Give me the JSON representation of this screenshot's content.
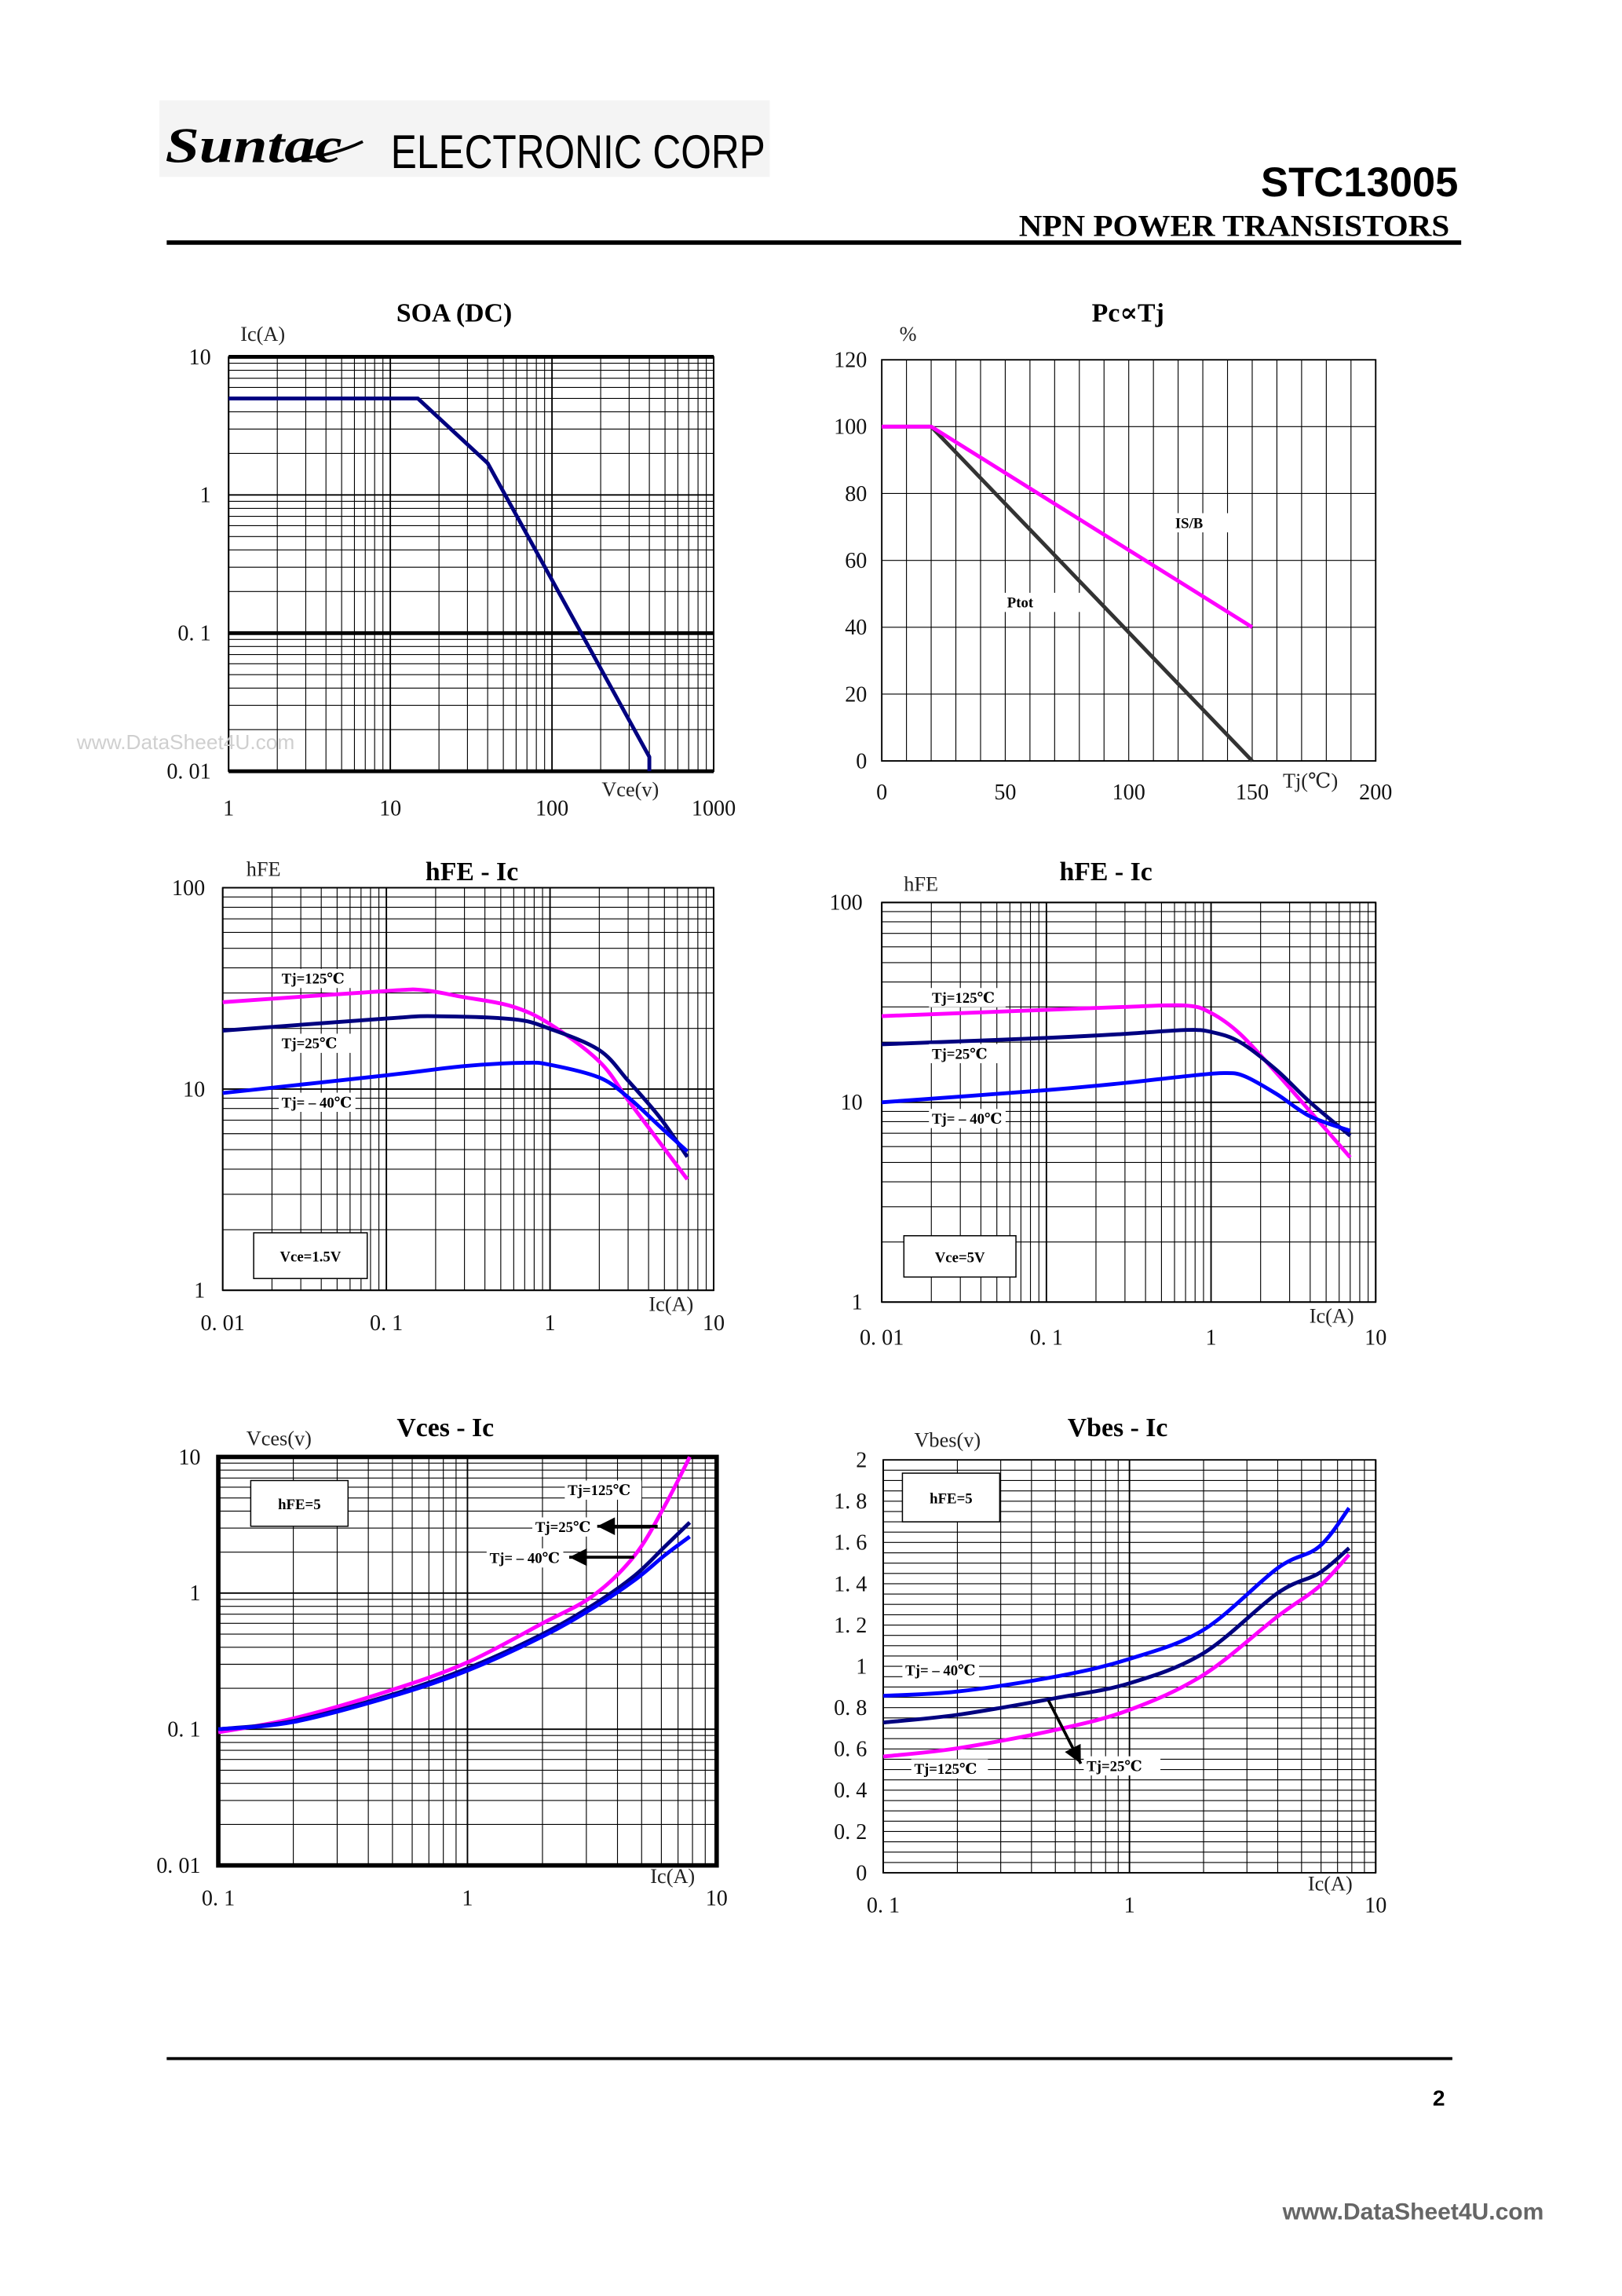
{
  "header": {
    "logo_text": "Suntac",
    "company": "ELECTRONIC CORP",
    "part_number": "STC13005",
    "subtitle": "NPN POWER TRANSISTORS"
  },
  "watermark_faint": "www.DataSheet4U.com",
  "footer": {
    "page_number": "2",
    "watermark": "www.DataSheet4U.com"
  },
  "colors": {
    "tj_125": "#ff00ff",
    "tj_25": "#000080",
    "tj_minus40": "#0000ff",
    "soa": "#000080",
    "ptot": "#333333",
    "isb": "#ff00ff"
  },
  "chart_data": [
    {
      "type": "line",
      "title": "SOA (DC)",
      "xlabel": "Vce(v)",
      "ylabel": "Ic(A)",
      "x_scale": "log",
      "y_scale": "log",
      "xlim": [
        1,
        1000
      ],
      "ylim": [
        0.01,
        10
      ],
      "x_ticks": [
        1,
        10,
        100,
        1000
      ],
      "x_tick_labels": [
        "1",
        "10",
        "100",
        "1000"
      ],
      "y_ticks": [
        10,
        1,
        0.1,
        0.01
      ],
      "y_tick_labels": [
        "10",
        "1",
        "0. 1",
        "0. 01"
      ],
      "grid": true,
      "interpolation": "linear",
      "series": [
        {
          "color": "#000080",
          "x": [
            1,
            14.8,
            40,
            400,
            400
          ],
          "y": [
            5,
            5,
            1.7,
            0.0127,
            0.01
          ]
        }
      ],
      "annotations": []
    },
    {
      "type": "line",
      "title": "Pc∝Tj",
      "xlabel": "Tj(℃)",
      "ylabel": "%",
      "x_scale": "linear",
      "y_scale": "linear",
      "xlim": [
        0,
        200
      ],
      "ylim": [
        0,
        120
      ],
      "x_ticks": [
        0,
        50,
        100,
        150,
        200
      ],
      "x_tick_labels": [
        "0",
        "50",
        "100",
        "150",
        "200"
      ],
      "y_ticks": [
        120,
        100,
        80,
        60,
        40,
        20,
        0
      ],
      "y_tick_labels": [
        "120",
        "100",
        "80",
        "60",
        "40",
        "20",
        "0"
      ],
      "grid": true,
      "interpolation": "linear",
      "series": [
        {
          "name": "Ptot",
          "color": "#333333",
          "x": [
            0,
            20,
            150
          ],
          "y": [
            100,
            100,
            0
          ]
        },
        {
          "name": "IS/B",
          "color": "#ff00ff",
          "x": [
            0,
            20,
            150
          ],
          "y": [
            100,
            100,
            40
          ]
        }
      ],
      "annotations": []
    },
    {
      "type": "line",
      "title": "hFE - Ic",
      "xlabel": "Ic(A)",
      "ylabel": "hFE",
      "x_scale": "log",
      "y_scale": "log",
      "xlim": [
        0.01,
        10
      ],
      "ylim": [
        1,
        100
      ],
      "x_ticks": [
        0.01,
        0.1,
        1,
        10
      ],
      "x_tick_labels": [
        "0. 01",
        "0. 1",
        "1",
        "10"
      ],
      "y_ticks": [
        100,
        10,
        1
      ],
      "y_tick_labels": [
        "100",
        "10",
        "1"
      ],
      "grid": true,
      "interpolation": "smooth",
      "series": [
        {
          "name": "Tj=125℃",
          "color": "#ff00ff",
          "x": [
            0.01,
            0.1,
            0.167,
            0.29,
            0.58,
            1,
            2,
            3,
            4.7,
            6.9
          ],
          "y": [
            27,
            30.7,
            31,
            28.7,
            25.8,
            21,
            13.7,
            8.8,
            5.4,
            3.56
          ]
        },
        {
          "name": "Tj=25℃",
          "color": "#000080",
          "x": [
            0.01,
            0.1,
            0.2,
            0.6,
            1,
            2,
            3,
            4.7,
            6.9
          ],
          "y": [
            19.5,
            22.4,
            23,
            22.2,
            19.9,
            15.6,
            11,
            7.2,
            4.6
          ]
        },
        {
          "name": "Tj= – 40℃",
          "color": "#0000ff",
          "x": [
            0.01,
            0.1,
            0.3,
            0.7,
            1,
            2,
            3,
            4.7,
            6.9
          ],
          "y": [
            9.55,
            11.7,
            13,
            13.5,
            13.2,
            11.4,
            9.1,
            6.5,
            4.9
          ]
        }
      ],
      "annotations": [
        "Vce=1.5V"
      ]
    },
    {
      "type": "line",
      "title": "hFE - Ic",
      "xlabel": "Ic(A)",
      "ylabel": "hFE",
      "x_scale": "log",
      "y_scale": "log",
      "xlim": [
        0.01,
        10
      ],
      "ylim": [
        1,
        100
      ],
      "x_ticks": [
        0.01,
        0.1,
        1,
        10
      ],
      "x_tick_labels": [
        "0. 01",
        "0. 1",
        "1",
        "10"
      ],
      "y_ticks": [
        100,
        10,
        1
      ],
      "y_tick_labels": [
        "100",
        "10",
        "1"
      ],
      "grid": true,
      "interpolation": "smooth",
      "series": [
        {
          "name": "Tj=125℃",
          "color": "#ff00ff",
          "x": [
            0.01,
            0.1,
            0.3,
            0.7,
            1,
            1.5,
            2.5,
            4,
            7
          ],
          "y": [
            27,
            29,
            30,
            30.5,
            28,
            22,
            14,
            9,
            5.3
          ]
        },
        {
          "name": "Tj=25℃",
          "color": "#000080",
          "x": [
            0.01,
            0.1,
            0.3,
            0.7,
            1,
            1.5,
            2.5,
            4,
            7
          ],
          "y": [
            19.5,
            21,
            22,
            23,
            22.5,
            20,
            14.5,
            10,
            6.8
          ]
        },
        {
          "name": "Tj= – 40℃",
          "color": "#0000ff",
          "x": [
            0.01,
            0.1,
            0.3,
            0.7,
            1.2,
            1.6,
            2.5,
            4,
            7
          ],
          "y": [
            10,
            11.5,
            12.5,
            13.5,
            14,
            13.5,
            11,
            8.5,
            7.2
          ]
        }
      ],
      "annotations": [
        "Vce=5V"
      ]
    },
    {
      "type": "line",
      "title": "Vces - Ic",
      "xlabel": "Ic(A)",
      "ylabel": "Vces(v)",
      "x_scale": "log",
      "y_scale": "log",
      "xlim": [
        0.1,
        10
      ],
      "ylim": [
        0.01,
        10
      ],
      "x_ticks": [
        0.1,
        1,
        10
      ],
      "x_tick_labels": [
        "0. 1",
        "1",
        "10"
      ],
      "y_ticks": [
        10,
        1,
        0.1,
        0.01
      ],
      "y_tick_labels": [
        "10",
        "1",
        "0. 1",
        "0. 01"
      ],
      "grid": true,
      "interpolation": "smooth",
      "series": [
        {
          "name": "Tj=125℃",
          "color": "#ff00ff",
          "x": [
            0.1,
            0.2,
            0.5,
            1,
            2,
            3.2,
            4.7,
            6.2,
            7.8
          ],
          "y": [
            0.095,
            0.12,
            0.195,
            0.31,
            0.6,
            0.96,
            1.9,
            4.4,
            10
          ]
        },
        {
          "name": "Tj=25℃",
          "color": "#000080",
          "x": [
            0.1,
            0.2,
            0.5,
            1,
            2,
            3.2,
            4.7,
            6.2,
            7.8
          ],
          "y": [
            0.1,
            0.115,
            0.18,
            0.28,
            0.5,
            0.82,
            1.35,
            2.2,
            3.3
          ]
        },
        {
          "name": "Tj= – 40℃",
          "color": "#0000ff",
          "x": [
            0.1,
            0.2,
            0.5,
            1,
            2,
            3.2,
            4.7,
            6.2,
            7.8
          ],
          "y": [
            0.1,
            0.113,
            0.175,
            0.27,
            0.48,
            0.78,
            1.25,
            1.9,
            2.6
          ]
        }
      ],
      "annotations": [
        "hFE=5"
      ]
    },
    {
      "type": "line",
      "title": "Vbes - Ic",
      "xlabel": "Ic(A)",
      "ylabel": "Vbes(v)",
      "x_scale": "log",
      "y_scale": "linear",
      "xlim": [
        0.1,
        10
      ],
      "ylim": [
        0,
        2
      ],
      "x_ticks": [
        0.1,
        1,
        10
      ],
      "x_tick_labels": [
        "0. 1",
        "1",
        "10"
      ],
      "y_ticks": [
        2,
        1.8,
        1.6,
        1.4,
        1.2,
        1,
        0.8,
        0.6,
        0.4,
        0.2,
        0
      ],
      "y_tick_labels": [
        "2",
        "1. 8",
        "1. 6",
        "1. 4",
        "1. 2",
        "1",
        "0. 8",
        "0. 6",
        "0. 4",
        "0. 2",
        "0"
      ],
      "grid": true,
      "interpolation": "smooth",
      "series": [
        {
          "name": "Tj=125℃",
          "color": "#ff00ff",
          "x": [
            0.1,
            0.2,
            0.5,
            1,
            2,
            4,
            5.9,
            7.8
          ],
          "y": [
            0.563,
            0.603,
            0.692,
            0.789,
            0.959,
            1.242,
            1.387,
            1.541
          ]
        },
        {
          "name": "Tj=25℃",
          "color": "#000080",
          "x": [
            0.1,
            0.2,
            0.5,
            1,
            2,
            4,
            5.9,
            7.8
          ],
          "y": [
            0.728,
            0.765,
            0.846,
            0.918,
            1.064,
            1.355,
            1.452,
            1.573
          ]
        },
        {
          "name": "Tj= – 40℃",
          "color": "#0000ff",
          "x": [
            0.1,
            0.2,
            0.5,
            1,
            2,
            4,
            5.9,
            7.8
          ],
          "y": [
            0.857,
            0.878,
            0.95,
            1.036,
            1.177,
            1.476,
            1.58,
            1.767
          ]
        }
      ],
      "annotations": [
        "hFE=5"
      ]
    }
  ]
}
